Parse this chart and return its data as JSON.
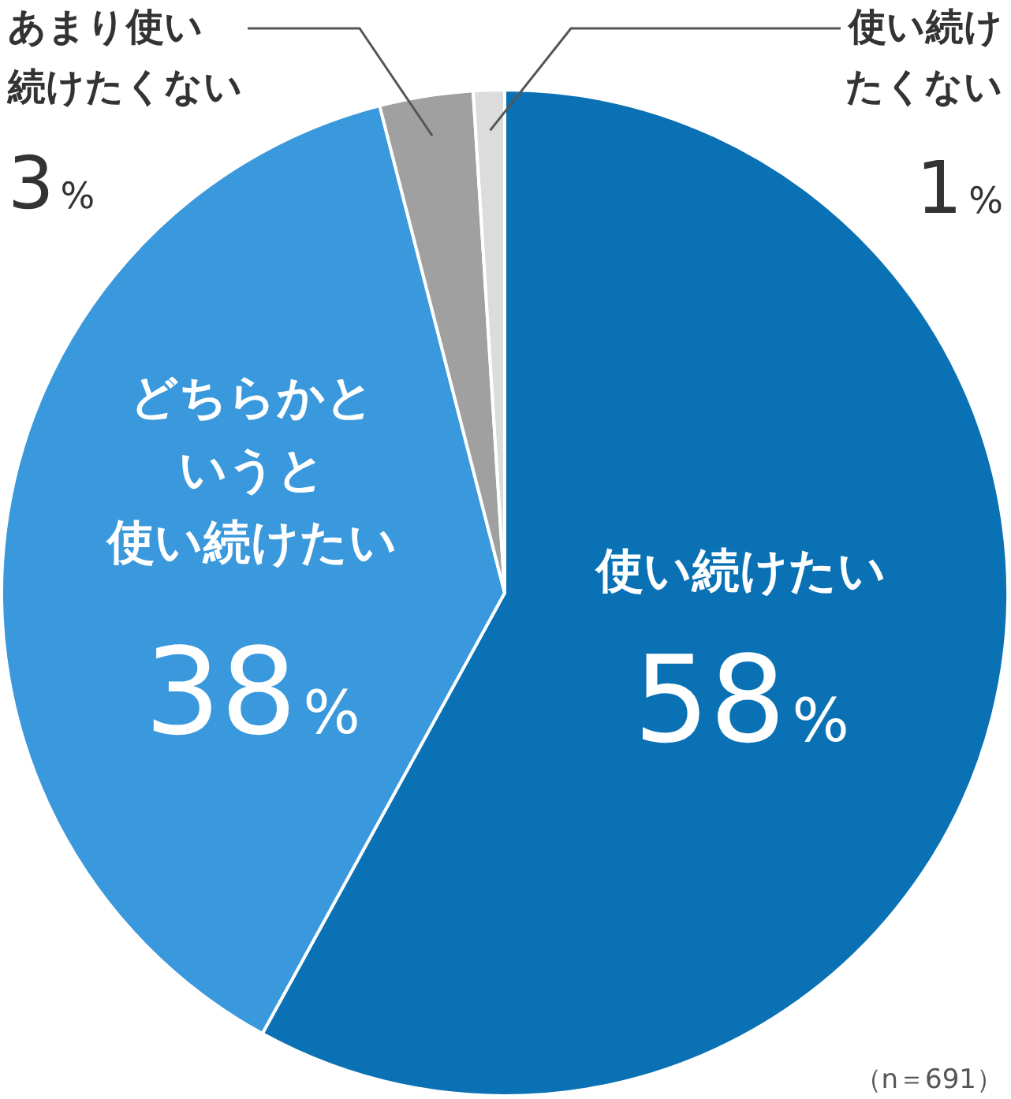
{
  "chart_data": {
    "type": "pie",
    "categories": [
      "使い続けたい",
      "どちらかというと使い続けたい",
      "あまり使い続けたくない",
      "使い続けたくない"
    ],
    "values": [
      58,
      38,
      3,
      1
    ],
    "value_labels": [
      "58%",
      "38%",
      "3%",
      "1%"
    ],
    "colors": [
      "#0a72b4",
      "#3a98dc",
      "#a0a0a0",
      "#dcdcdc"
    ],
    "annotations": [
      "（n＝691）"
    ]
  }
}
